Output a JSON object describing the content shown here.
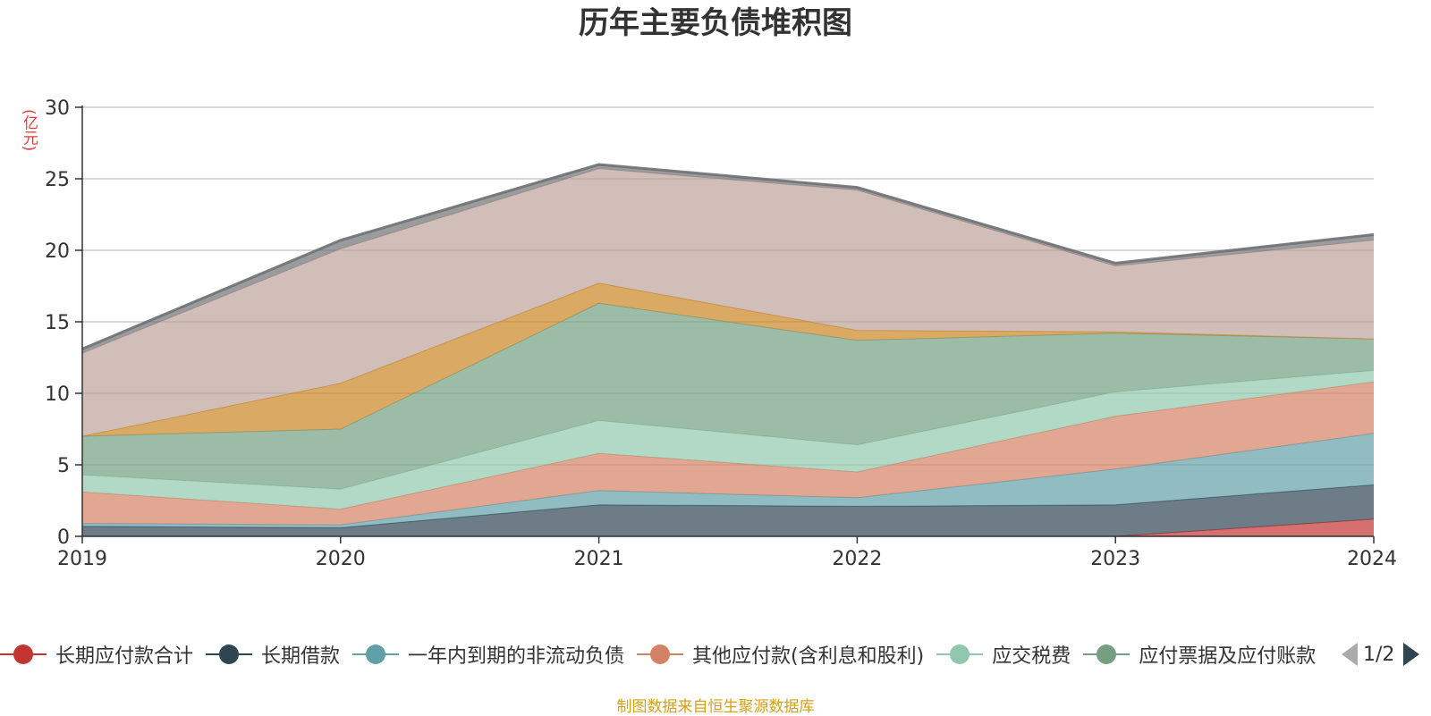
{
  "chart_data": {
    "type": "area",
    "stacked": true,
    "title": "历年主要负债堆积图",
    "ylabel": "(亿元)",
    "xlabel": "",
    "x": [
      "2019",
      "2020",
      "2021",
      "2022",
      "2023",
      "2024"
    ],
    "ylim": [
      0,
      30
    ],
    "yticks": [
      0,
      5,
      10,
      15,
      20,
      25,
      30
    ],
    "grid": true,
    "legend_position": "bottom",
    "series": [
      {
        "name": "长期应付款合计",
        "color": "#c23531",
        "values": [
          0,
          0,
          0,
          0,
          0,
          1.2
        ]
      },
      {
        "name": "长期借款",
        "color": "#2f4554",
        "values": [
          0.7,
          0.6,
          2.2,
          2.1,
          2.2,
          2.4
        ]
      },
      {
        "name": "一年内到期的非流动负债",
        "color": "#61a0a8",
        "values": [
          0.2,
          0.2,
          1.0,
          0.6,
          2.5,
          3.6
        ]
      },
      {
        "name": "其他应付款(含利息和股利)",
        "color": "#d48265",
        "values": [
          2.2,
          1.1,
          2.6,
          1.8,
          3.7,
          3.6
        ]
      },
      {
        "name": "应交税费",
        "color": "#91c7ae",
        "values": [
          1.2,
          1.4,
          2.3,
          1.9,
          1.7,
          0.8
        ]
      },
      {
        "name": "应付票据及应付账款",
        "color": "#749f83",
        "values": [
          2.7,
          4.2,
          8.2,
          7.3,
          4.1,
          2.2
        ]
      },
      {
        "name": "",
        "color": "#ca8622",
        "values": [
          0.0,
          3.2,
          1.4,
          0.7,
          0.1,
          0.0
        ]
      },
      {
        "name": "",
        "color": "#bda29a",
        "values": [
          5.8,
          9.4,
          8.0,
          9.8,
          4.6,
          6.9
        ]
      },
      {
        "name": "",
        "color": "#6e7074",
        "values": [
          0.3,
          0.6,
          0.3,
          0.2,
          0.2,
          0.4
        ]
      }
    ]
  },
  "legend": {
    "items": [
      {
        "name": "长期应付款合计",
        "color": "#c23531"
      },
      {
        "name": "长期借款",
        "color": "#2f4554"
      },
      {
        "name": "一年内到期的非流动负债",
        "color": "#61a0a8"
      },
      {
        "name": "其他应付款(含利息和股利)",
        "color": "#d48265"
      },
      {
        "name": "应交税费",
        "color": "#91c7ae"
      },
      {
        "name": "应付票据及应付账款",
        "color": "#749f83"
      }
    ],
    "page": "1/2"
  },
  "footer": {
    "source": "制图数据来自恒生聚源数据库"
  }
}
